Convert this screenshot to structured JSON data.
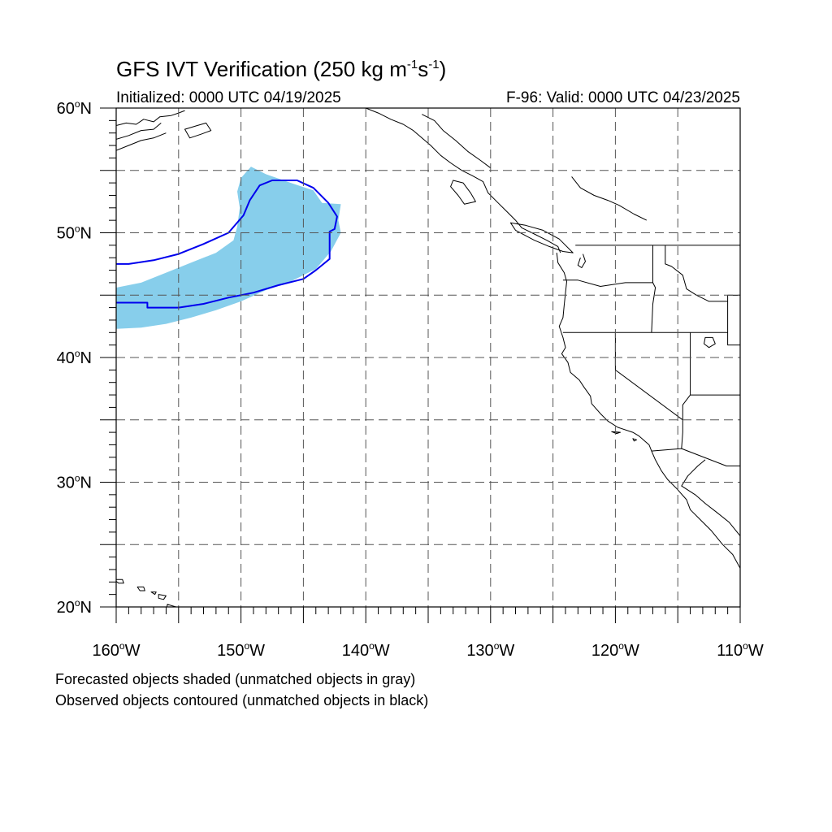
{
  "header": {
    "title_prefix": "GFS IVT Verification (250 kg m",
    "title_sup1": "-1",
    "title_mid": "s",
    "title_sup2": "-1",
    "title_suffix": ")",
    "initialized": "Initialized: 0000 UTC 04/19/2025",
    "valid": "F-96: Valid: 0000 UTC 04/23/2025"
  },
  "map": {
    "extent": {
      "lon_min": -160,
      "lon_max": -110,
      "lat_min": 20,
      "lat_max": 60
    },
    "lat_ticks": [
      {
        "value": 20,
        "text": "20",
        "deg": "o",
        "hem": "N"
      },
      {
        "value": 30,
        "text": "30",
        "deg": "o",
        "hem": "N"
      },
      {
        "value": 40,
        "text": "40",
        "deg": "o",
        "hem": "N"
      },
      {
        "value": 50,
        "text": "50",
        "deg": "o",
        "hem": "N"
      },
      {
        "value": 60,
        "text": "60",
        "deg": "o",
        "hem": "N"
      }
    ],
    "lon_ticks": [
      {
        "value": -160,
        "text": "160",
        "deg": "o",
        "hem": "W"
      },
      {
        "value": -150,
        "text": "150",
        "deg": "o",
        "hem": "W"
      },
      {
        "value": -140,
        "text": "140",
        "deg": "o",
        "hem": "W"
      },
      {
        "value": -130,
        "text": "130",
        "deg": "o",
        "hem": "W"
      },
      {
        "value": -120,
        "text": "120",
        "deg": "o",
        "hem": "W"
      },
      {
        "value": -110,
        "text": "110",
        "deg": "o",
        "hem": "W"
      }
    ],
    "grid_interval_deg": 5,
    "colors": {
      "forecast_fill": "#87ceeb",
      "observed_contour": "#0000ee",
      "coastline": "#000000",
      "grid": "#555555"
    },
    "forecast_object": [
      [
        -160,
        42.3
      ],
      [
        -158,
        42.4
      ],
      [
        -156,
        42.7
      ],
      [
        -154,
        43.2
      ],
      [
        -152,
        43.8
      ],
      [
        -150,
        44.5
      ],
      [
        -148,
        45.4
      ],
      [
        -146,
        46.1
      ],
      [
        -144,
        47.1
      ],
      [
        -142.8,
        48.5
      ],
      [
        -142,
        50.0
      ],
      [
        -142.2,
        51.0
      ],
      [
        -142.0,
        52.3
      ],
      [
        -143.5,
        52.4
      ],
      [
        -144.2,
        53.4
      ],
      [
        -146,
        54.0
      ],
      [
        -148,
        54.7
      ],
      [
        -149.2,
        55.3
      ],
      [
        -150,
        54.4
      ],
      [
        -150.3,
        53.3
      ],
      [
        -150.1,
        52.0
      ],
      [
        -150.3,
        50.5
      ],
      [
        -150.6,
        49.4
      ],
      [
        -152,
        48.4
      ],
      [
        -154,
        47.6
      ],
      [
        -156,
        46.8
      ],
      [
        -158,
        46.0
      ],
      [
        -160,
        45.6
      ]
    ],
    "observed_contours": [
      [
        [
          -160,
          44.4
        ],
        [
          -158,
          44.4
        ],
        [
          -157.5,
          44.4
        ],
        [
          -157.5,
          44.0
        ],
        [
          -155,
          44.0
        ],
        [
          -153,
          44.3
        ],
        [
          -151,
          44.8
        ],
        [
          -149,
          45.2
        ],
        [
          -147,
          45.8
        ],
        [
          -145,
          46.3
        ],
        [
          -144,
          47.0
        ],
        [
          -142.9,
          47.9
        ],
        [
          -142.9,
          50.1
        ],
        [
          -142.5,
          50.3
        ],
        [
          -142.3,
          51.3
        ],
        [
          -143,
          52.4
        ],
        [
          -144.2,
          53.6
        ],
        [
          -145.5,
          54.2
        ],
        [
          -147.5,
          54.2
        ],
        [
          -148.5,
          53.8
        ],
        [
          -149.3,
          52.6
        ],
        [
          -149.8,
          51.4
        ],
        [
          -151,
          50.0
        ],
        [
          -153,
          49.1
        ],
        [
          -155,
          48.3
        ],
        [
          -157,
          47.8
        ],
        [
          -159,
          47.5
        ],
        [
          -160,
          47.5
        ]
      ]
    ]
  },
  "footnotes": {
    "line1": "Forecasted objects shaded (unmatched objects in gray)",
    "line2": "Observed objects contoured (unmatched objects in black)"
  }
}
